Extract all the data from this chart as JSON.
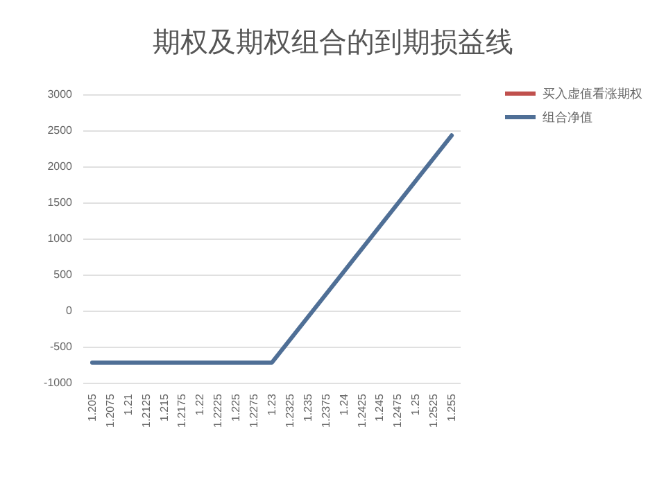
{
  "chart_data": {
    "type": "line",
    "title": "期权及期权组合的到期损益线",
    "categories": [
      "1.205",
      "1.2075",
      "1.21",
      "1.2125",
      "1.215",
      "1.2175",
      "1.22",
      "1.2225",
      "1.225",
      "1.2275",
      "1.23",
      "1.2325",
      "1.235",
      "1.2375",
      "1.24",
      "1.2425",
      "1.245",
      "1.2475",
      "1.25",
      "1.2525",
      "1.255"
    ],
    "series": [
      {
        "name": "买入虚值看涨期权",
        "color": "#c0504d",
        "values": [
          null,
          null,
          null,
          null,
          null,
          null,
          null,
          null,
          null,
          null,
          null,
          null,
          null,
          null,
          null,
          null,
          null,
          null,
          null,
          null,
          null
        ]
      },
      {
        "name": "组合净值",
        "color": "#4f6f96",
        "values": [
          -720,
          -720,
          -720,
          -720,
          -720,
          -720,
          -720,
          -720,
          -720,
          -720,
          -720,
          -405,
          -90,
          225,
          540,
          855,
          1170,
          1485,
          1800,
          2115,
          2430
        ]
      }
    ],
    "ylim": [
      -1000,
      3000
    ],
    "yticks": [
      -1000,
      -500,
      0,
      500,
      1000,
      1500,
      2000,
      2500,
      3000
    ],
    "grid": "y",
    "legend": "right",
    "marker": "none",
    "line_style": "solid"
  }
}
